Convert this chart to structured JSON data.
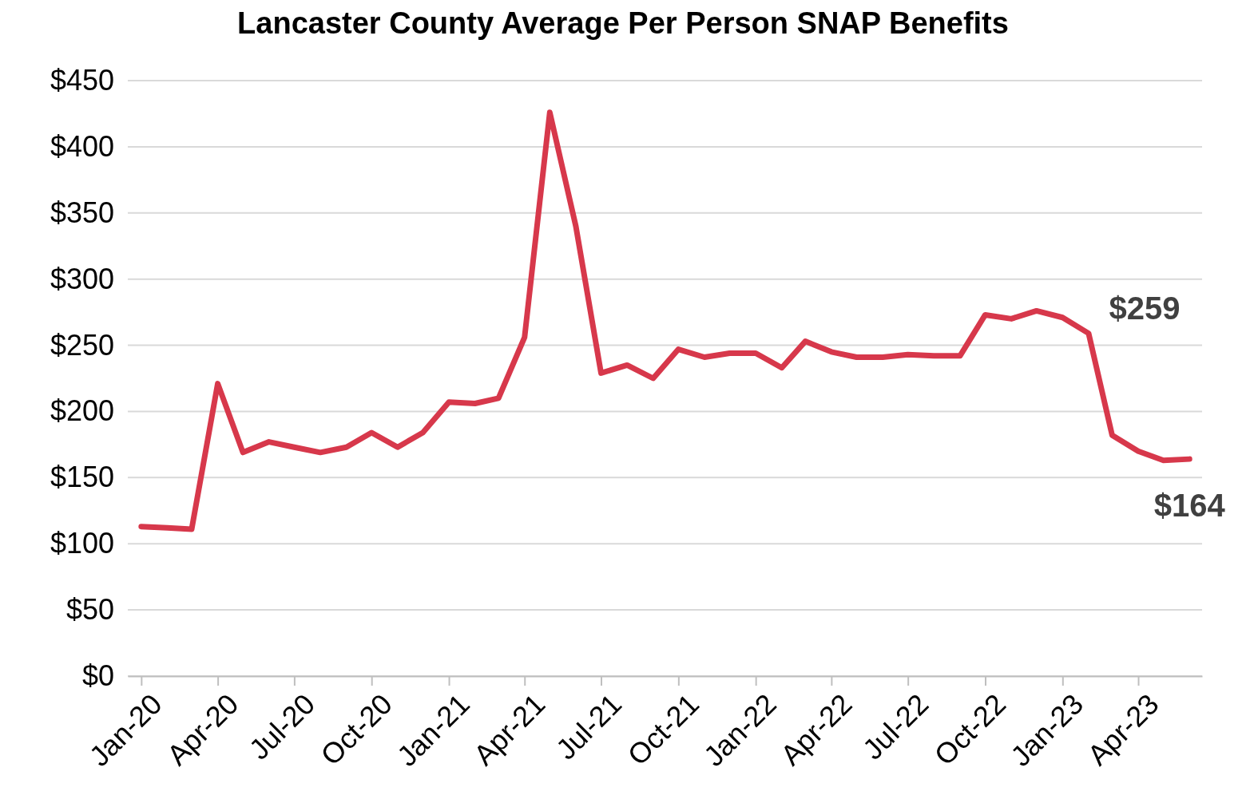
{
  "chart_data": {
    "type": "line",
    "title": "Lancaster County Average Per Person SNAP Benefits",
    "x": [
      "2020-01",
      "2020-02",
      "2020-03",
      "2020-04",
      "2020-05",
      "2020-06",
      "2020-07",
      "2020-08",
      "2020-09",
      "2020-10",
      "2020-11",
      "2020-12",
      "2021-01",
      "2021-02",
      "2021-03",
      "2021-04",
      "2021-05",
      "2021-06",
      "2021-07",
      "2021-08",
      "2021-09",
      "2021-10",
      "2021-11",
      "2021-12",
      "2022-01",
      "2022-02",
      "2022-03",
      "2022-04",
      "2022-05",
      "2022-06",
      "2022-07",
      "2022-08",
      "2022-09",
      "2022-10",
      "2022-11",
      "2022-12",
      "2023-01",
      "2023-02",
      "2023-03",
      "2023-04",
      "2023-05",
      "2023-06"
    ],
    "series": [
      {
        "color": "#d7384b",
        "values": [
          113,
          112,
          111,
          221,
          169,
          177,
          173,
          169,
          173,
          184,
          173,
          184,
          207,
          206,
          210,
          256,
          426,
          340,
          229,
          235,
          225,
          247,
          241,
          244,
          244,
          233,
          253,
          245,
          241,
          241,
          243,
          242,
          242,
          273,
          270,
          276,
          271,
          259,
          182,
          170,
          163,
          164
        ]
      }
    ],
    "xlim": [
      "2019-12-16",
      "2023-06-16"
    ],
    "xticks": [
      {
        "value": "2020-01",
        "label": "Jan-20"
      },
      {
        "value": "2020-04",
        "label": "Apr-20"
      },
      {
        "value": "2020-07",
        "label": "Jul-20"
      },
      {
        "value": "2020-10",
        "label": "Oct-20"
      },
      {
        "value": "2021-01",
        "label": "Jan-21"
      },
      {
        "value": "2021-04",
        "label": "Apr-21"
      },
      {
        "value": "2021-07",
        "label": "Jul-21"
      },
      {
        "value": "2021-10",
        "label": "Oct-21"
      },
      {
        "value": "2022-01",
        "label": "Jan-22"
      },
      {
        "value": "2022-04",
        "label": "Apr-22"
      },
      {
        "value": "2022-07",
        "label": "Jul-22"
      },
      {
        "value": "2022-10",
        "label": "Oct-22"
      },
      {
        "value": "2023-01",
        "label": "Jan-23"
      },
      {
        "value": "2023-04",
        "label": "Apr-23"
      }
    ],
    "ylim": [
      0,
      450
    ],
    "yticks": [
      {
        "value": 0,
        "label": "$0"
      },
      {
        "value": 50,
        "label": "$50"
      },
      {
        "value": 100,
        "label": "$100"
      },
      {
        "value": 150,
        "label": "$150"
      },
      {
        "value": 200,
        "label": "$200"
      },
      {
        "value": 250,
        "label": "$250"
      },
      {
        "value": 300,
        "label": "$300"
      },
      {
        "value": 350,
        "label": "$350"
      },
      {
        "value": 400,
        "label": "$400"
      },
      {
        "value": 450,
        "label": "$450"
      }
    ],
    "grid": "y",
    "annotations": [
      {
        "text": "$259",
        "x": "2023-02",
        "y": 259
      },
      {
        "text": "$164",
        "x": "2023-06",
        "y": 164
      }
    ]
  }
}
